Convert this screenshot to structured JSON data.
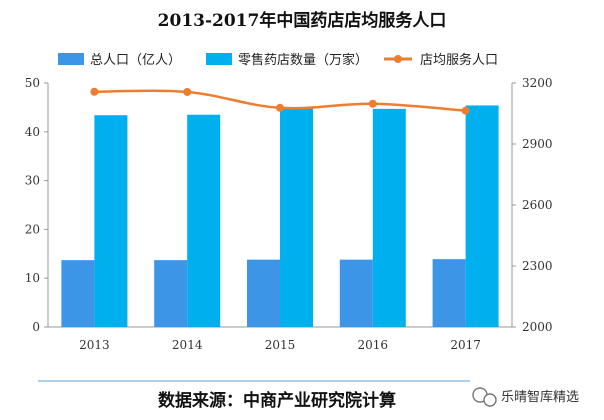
{
  "colors": {
    "series_total_population": "#3d95e8",
    "series_store_count": "#00b0ee",
    "series_population_per_store": "#ed7d31",
    "axis": "#999999",
    "baseline": "#7fb4e0"
  },
  "source_text": "数据来源：中商产业研究院计算",
  "watermark_text": "乐晴智库精选",
  "watermark_icon": "wechat-icon",
  "chart_data": {
    "type": "bar",
    "title": "2013-2017年中国药店店均服务人口",
    "categories": [
      "2013",
      "2014",
      "2015",
      "2016",
      "2017"
    ],
    "legend_position": "top",
    "grid": false,
    "series": [
      {
        "name": "总人口（亿人）",
        "type": "bar",
        "axis": "left",
        "values": [
          13.7,
          13.7,
          13.8,
          13.8,
          13.9
        ]
      },
      {
        "name": "零售药店数量（万家）",
        "type": "bar",
        "axis": "left",
        "values": [
          43.4,
          43.5,
          44.8,
          44.7,
          45.4
        ]
      },
      {
        "name": "店均服务人口",
        "type": "line",
        "axis": "right",
        "values": [
          3157,
          3156,
          3078,
          3098,
          3064
        ]
      }
    ],
    "ylim_left": [
      0,
      50
    ],
    "yticks_left": [
      "0",
      "10",
      "20",
      "30",
      "40",
      "50"
    ],
    "ylim_right": [
      2000,
      3200
    ],
    "yticks_right": [
      "2000",
      "2300",
      "2600",
      "2900",
      "3200"
    ]
  }
}
